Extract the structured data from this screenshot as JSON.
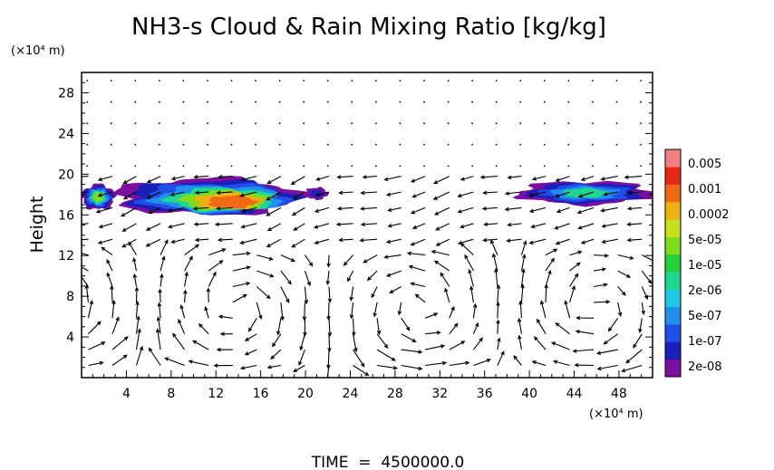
{
  "chart_data": {
    "type": "heatmap",
    "title": "NH3-s Cloud & Rain Mixing Ratio [kg/kg]",
    "ylabel": "Height",
    "y_unit": "(×10⁴ m)",
    "x_unit": "(×10⁴ m)",
    "xlim": [
      0,
      51
    ],
    "ylim": [
      0,
      30
    ],
    "x_ticks": [
      4,
      8,
      12,
      16,
      20,
      24,
      28,
      32,
      36,
      40,
      44,
      48
    ],
    "y_ticks": [
      4,
      8,
      12,
      16,
      20,
      24,
      28
    ],
    "colorbar": {
      "labels": [
        "0.005",
        "0.001",
        "0.0002",
        "5e-05",
        "1e-05",
        "2e-06",
        "5e-07",
        "1e-07",
        "2e-08"
      ],
      "colors_bottom_to_top": [
        "#7a0fa0",
        "#1a1fb8",
        "#1f4fe6",
        "#1f8ff0",
        "#1fc8e6",
        "#1fd890",
        "#23d23a",
        "#7fdc1a",
        "#c8e01a",
        "#f0b014",
        "#f06a14",
        "#e62814",
        "#f28080"
      ]
    },
    "cloud_regions": [
      {
        "x_range": [
          0,
          3
        ],
        "y_range": [
          16.5,
          19
        ],
        "levels": [
          "2e-08",
          "1e-07",
          "5e-07",
          "2e-06",
          "1e-05",
          "5e-05"
        ]
      },
      {
        "x_range": [
          3,
          19.5
        ],
        "y_range": [
          16,
          19.6
        ],
        "levels": [
          "2e-08",
          "1e-07",
          "5e-07",
          "2e-06",
          "1e-05",
          "5e-05",
          "0.0002",
          "0.001"
        ]
      },
      {
        "x_range": [
          20,
          22
        ],
        "y_range": [
          17.5,
          18.7
        ],
        "levels": [
          "2e-08",
          "1e-07"
        ]
      },
      {
        "x_range": [
          39,
          51
        ],
        "y_range": [
          17,
          19.3
        ],
        "levels": [
          "2e-08",
          "1e-07",
          "5e-07",
          "2e-06",
          "1e-05"
        ]
      }
    ],
    "overlay": "wind vector field (arrows)",
    "footer": "TIME  =  4500000.0"
  }
}
